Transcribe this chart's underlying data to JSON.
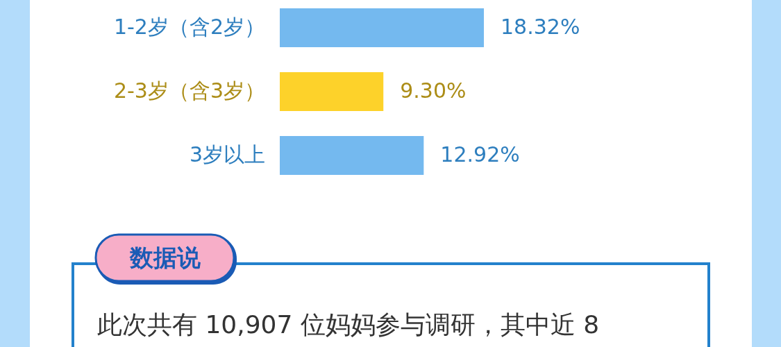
{
  "chart_data": {
    "type": "bar",
    "orientation": "horizontal",
    "categories": [
      "1-2岁（含2岁）",
      "2-3岁（含3岁）",
      "3岁以上"
    ],
    "values": [
      18.32,
      9.3,
      12.92
    ],
    "value_labels": [
      "18.32%",
      "9.30%",
      "12.92%"
    ],
    "colors": [
      "#74b9ef",
      "#fdd22a",
      "#74b9ef"
    ],
    "annotations": [
      "数据说",
      "此次共有 10,907 位妈妈参与调研，其中近 8"
    ]
  }
}
